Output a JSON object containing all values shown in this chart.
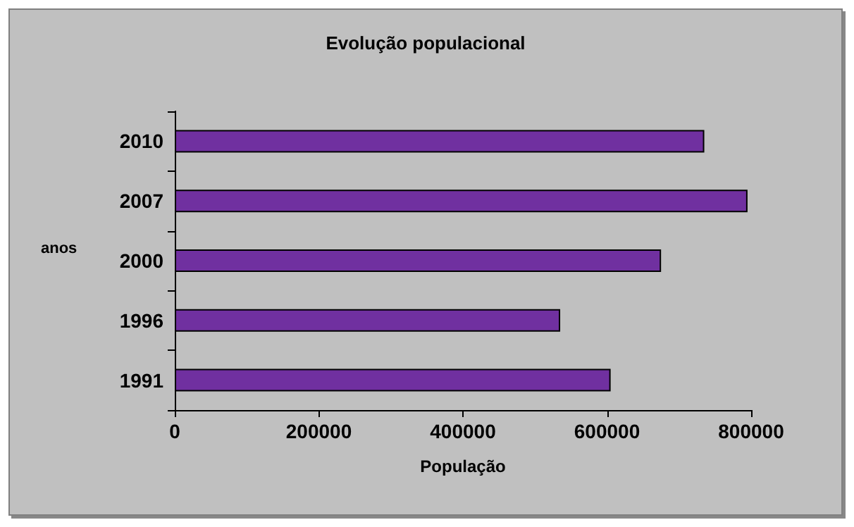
{
  "chart_data": {
    "type": "bar",
    "orientation": "horizontal",
    "title": "Evolução populacional",
    "xlabel": "População",
    "ylabel": "anos",
    "categories": [
      "2010",
      "2007",
      "2000",
      "1996",
      "1991"
    ],
    "values": [
      735000,
      795000,
      675000,
      535000,
      605000
    ],
    "color": "#7030a0",
    "xlim": [
      0,
      800000
    ],
    "xticks": [
      0,
      200000,
      400000,
      600000,
      800000
    ],
    "grid": false
  }
}
